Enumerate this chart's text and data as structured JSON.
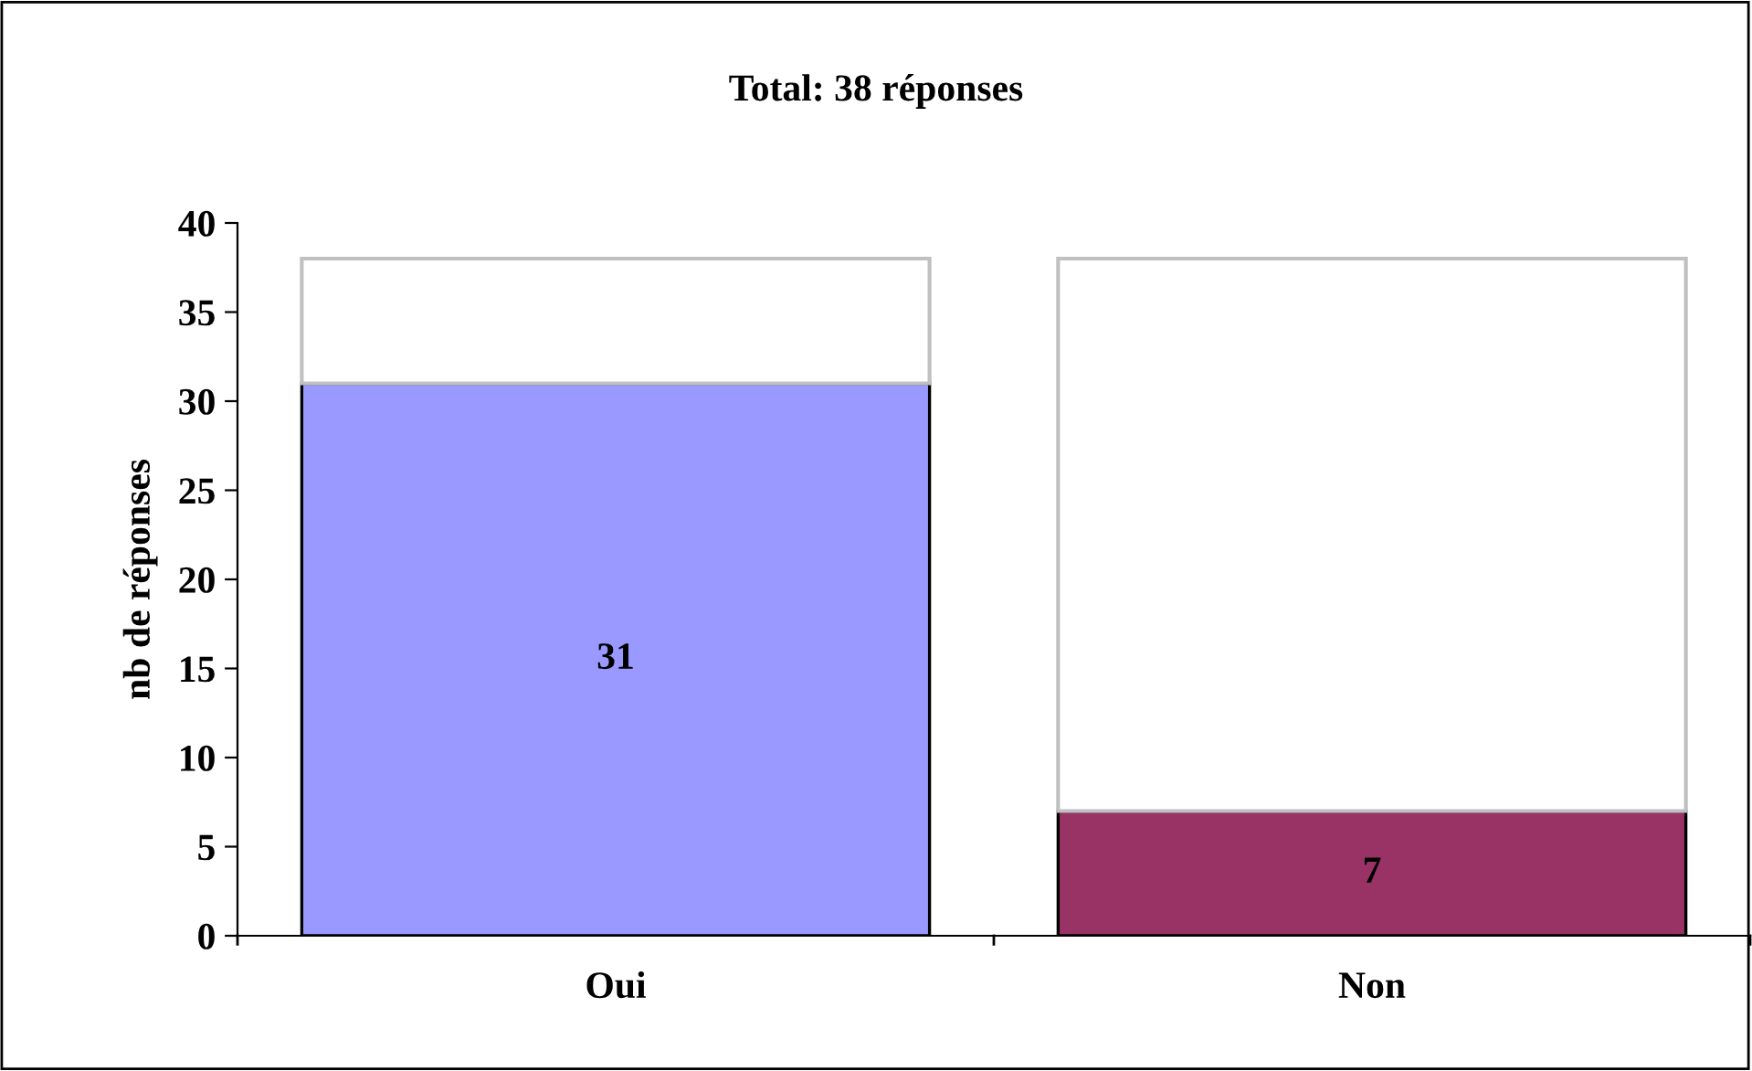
{
  "chart_data": {
    "type": "bar",
    "title": "Total: 38 réponses",
    "ylabel": "nb de réponses",
    "categories": [
      "Oui",
      "Non"
    ],
    "stacked": true,
    "series": [
      {
        "colors": [
          "#9999ff",
          "#993366"
        ],
        "values": [
          31,
          7
        ],
        "value_labels": [
          "31",
          "7"
        ]
      },
      {
        "color": "#ffffff",
        "values": [
          7,
          31
        ]
      }
    ],
    "ylim": [
      0,
      40
    ],
    "yticks": [
      0,
      5,
      10,
      15,
      20,
      25,
      30,
      35,
      40
    ],
    "grid": false,
    "legend": false
  }
}
